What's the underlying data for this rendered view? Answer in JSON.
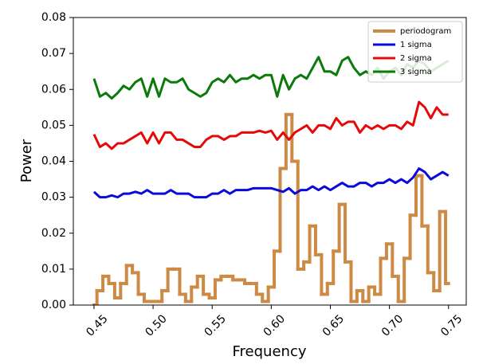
{
  "chart_data": {
    "type": "line",
    "xlabel": "Frequency",
    "ylabel": "Power",
    "x": [
      0.45,
      0.455,
      0.46,
      0.465,
      0.47,
      0.475,
      0.48,
      0.485,
      0.49,
      0.495,
      0.5,
      0.505,
      0.51,
      0.515,
      0.52,
      0.525,
      0.53,
      0.535,
      0.54,
      0.545,
      0.55,
      0.555,
      0.56,
      0.565,
      0.57,
      0.575,
      0.58,
      0.585,
      0.59,
      0.595,
      0.6,
      0.605,
      0.61,
      0.615,
      0.62,
      0.625,
      0.63,
      0.635,
      0.64,
      0.645,
      0.65,
      0.655,
      0.66,
      0.665,
      0.67,
      0.675,
      0.68,
      0.685,
      0.69,
      0.695,
      0.7,
      0.705,
      0.71,
      0.715,
      0.72,
      0.725,
      0.73,
      0.735,
      0.74,
      0.745,
      0.75
    ],
    "series": [
      {
        "name": "periodogram",
        "color": "#cd8a45",
        "drawstyle": "steps-mid",
        "width": 4,
        "values": [
          0,
          0.004,
          0.008,
          0.006,
          0.002,
          0.006,
          0.011,
          0.009,
          0.003,
          0.001,
          0.001,
          0.001,
          0.004,
          0.01,
          0.01,
          0.003,
          0.001,
          0.005,
          0.008,
          0.003,
          0.002,
          0.007,
          0.008,
          0.008,
          0.007,
          0.007,
          0.006,
          0.006,
          0.003,
          0.001,
          0.005,
          0.015,
          0.038,
          0.053,
          0.04,
          0.01,
          0.012,
          0.022,
          0.014,
          0.003,
          0.006,
          0.015,
          0.028,
          0.012,
          0.001,
          0.004,
          0.001,
          0.005,
          0.003,
          0.013,
          0.017,
          0.008,
          0.001,
          0.013,
          0.025,
          0.036,
          0.022,
          0.009,
          0.004,
          0.026,
          0.006
        ]
      },
      {
        "name": "1 sigma",
        "color": "#0a0adc",
        "drawstyle": "default",
        "width": 3,
        "values": [
          0.0315,
          0.03,
          0.03,
          0.0305,
          0.03,
          0.031,
          0.031,
          0.0315,
          0.031,
          0.032,
          0.031,
          0.031,
          0.031,
          0.032,
          0.031,
          0.031,
          0.031,
          0.03,
          0.03,
          0.03,
          0.031,
          0.031,
          0.032,
          0.031,
          0.032,
          0.032,
          0.032,
          0.0325,
          0.0325,
          0.0325,
          0.0325,
          0.032,
          0.0315,
          0.0325,
          0.031,
          0.032,
          0.032,
          0.033,
          0.032,
          0.033,
          0.032,
          0.033,
          0.034,
          0.033,
          0.033,
          0.034,
          0.034,
          0.033,
          0.034,
          0.034,
          0.035,
          0.034,
          0.035,
          0.034,
          0.0355,
          0.038,
          0.037,
          0.035,
          0.036,
          0.037,
          0.036
        ]
      },
      {
        "name": "2 sigma",
        "color": "#e50a0a",
        "drawstyle": "default",
        "width": 3,
        "values": [
          0.0475,
          0.044,
          0.045,
          0.0435,
          0.045,
          0.045,
          0.046,
          0.047,
          0.048,
          0.045,
          0.048,
          0.045,
          0.048,
          0.048,
          0.046,
          0.046,
          0.045,
          0.044,
          0.044,
          0.046,
          0.047,
          0.047,
          0.046,
          0.047,
          0.047,
          0.048,
          0.048,
          0.048,
          0.0485,
          0.048,
          0.0485,
          0.046,
          0.048,
          0.046,
          0.048,
          0.049,
          0.05,
          0.048,
          0.05,
          0.05,
          0.049,
          0.052,
          0.05,
          0.051,
          0.051,
          0.048,
          0.05,
          0.049,
          0.05,
          0.049,
          0.05,
          0.05,
          0.049,
          0.051,
          0.05,
          0.0565,
          0.055,
          0.052,
          0.055,
          0.053,
          0.053
        ]
      },
      {
        "name": "3 sigma",
        "color": "#0a7a0a",
        "drawstyle": "default",
        "width": 3,
        "values": [
          0.063,
          0.058,
          0.059,
          0.0575,
          0.059,
          0.061,
          0.06,
          0.062,
          0.063,
          0.058,
          0.063,
          0.058,
          0.063,
          0.062,
          0.062,
          0.063,
          0.06,
          0.059,
          0.058,
          0.059,
          0.062,
          0.063,
          0.062,
          0.064,
          0.062,
          0.063,
          0.063,
          0.064,
          0.063,
          0.064,
          0.064,
          0.058,
          0.064,
          0.06,
          0.063,
          0.064,
          0.063,
          0.066,
          0.069,
          0.065,
          0.065,
          0.064,
          0.068,
          0.069,
          0.066,
          0.064,
          0.065,
          0.064,
          0.066,
          0.063,
          0.065,
          0.066,
          0.064,
          0.067,
          0.066,
          0.068,
          0.067,
          0.065,
          0.066,
          0.067,
          0.068
        ]
      }
    ],
    "xlim": [
      0.4325,
      0.765
    ],
    "ylim": [
      0,
      0.08
    ],
    "xticks": [
      0.45,
      {
        "value": 0.5,
        "label": "0.50"
      },
      0.55,
      {
        "value": 0.6,
        "label": "0.60"
      },
      0.65,
      {
        "value": 0.7,
        "label": "0.70"
      },
      0.75
    ],
    "yticks": [
      {
        "value": 0,
        "label": "0.00"
      },
      {
        "value": 0.01,
        "label": "0.01"
      },
      {
        "value": 0.02,
        "label": "0.02"
      },
      {
        "value": 0.03,
        "label": "0.03"
      },
      {
        "value": 0.04,
        "label": "0.04"
      },
      {
        "value": 0.05,
        "label": "0.05"
      },
      {
        "value": 0.06,
        "label": "0.06"
      },
      {
        "value": 0.07,
        "label": "0.07"
      },
      {
        "value": 0.08,
        "label": "0.08"
      }
    ],
    "legend": "upper right",
    "grid": false
  }
}
